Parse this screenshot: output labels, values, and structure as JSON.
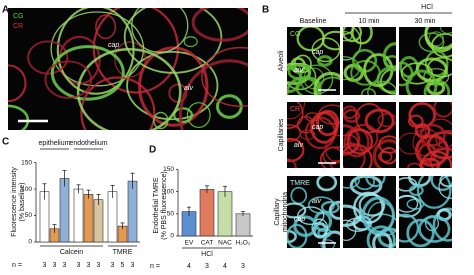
{
  "panel_a": {
    "letter": "A",
    "stains": [
      "CG",
      "CR"
    ],
    "labels": [
      "cap",
      "alv"
    ]
  },
  "panel_b": {
    "letter": "B",
    "columns": [
      "Baseline",
      "10 min",
      "30 min"
    ],
    "group": "HCl",
    "rows": [
      {
        "label": [
          "Alveoli"
        ],
        "stain": "CG",
        "labels": [
          "cap",
          "alv"
        ]
      },
      {
        "label": [
          "Capillaries"
        ],
        "stain": "CR",
        "labels": [
          "cap",
          "alv"
        ]
      },
      {
        "label": [
          "Capillary",
          "mitochondria"
        ],
        "stain": "TMRE",
        "labels": [
          "alv",
          "cap"
        ]
      }
    ]
  },
  "chart_data": [
    {
      "type": "bar",
      "panel": "C",
      "y_label": [
        "Fluorescence intensity",
        "(% baseline)"
      ],
      "top_labels": [
        "epithelium",
        "endothelium"
      ],
      "group_labels": [
        "Calcein",
        "TMRE"
      ],
      "values": [
        95,
        25,
        120,
        100,
        90,
        80,
        95,
        30,
        115
      ],
      "errors": [
        15,
        8,
        15,
        8,
        8,
        10,
        12,
        6,
        15
      ],
      "colors": [
        "#ffffff",
        "#e59a52",
        "#8fb0d8",
        "#ffffff",
        "#e59a52",
        "#d9c4a0",
        "#ffffff",
        "#e59a52",
        "#8fb0d8"
      ],
      "ylim": [
        0,
        170
      ],
      "yticks": [
        0,
        50,
        100,
        150
      ],
      "n_label": "n =",
      "n": [
        3,
        3,
        3,
        3,
        3,
        3,
        3,
        5,
        3
      ]
    },
    {
      "type": "bar",
      "panel": "D",
      "y_label": [
        "Endothelial TMRE",
        "(% PBS fluorescence)"
      ],
      "categories": [
        "EV",
        "CAT",
        "NAC",
        "H₂O₂"
      ],
      "group_labels": [
        "HCl"
      ],
      "values": [
        55,
        105,
        100,
        50
      ],
      "errors": [
        10,
        8,
        12,
        5
      ],
      "colors": [
        "#5b8fd1",
        "#e07a5f",
        "#c5dea6",
        "#c8c8c8"
      ],
      "ylim": [
        0,
        160
      ],
      "yticks": [
        0,
        50,
        100,
        150
      ],
      "n_label": "n =",
      "n": [
        4,
        3,
        4,
        3
      ]
    }
  ]
}
